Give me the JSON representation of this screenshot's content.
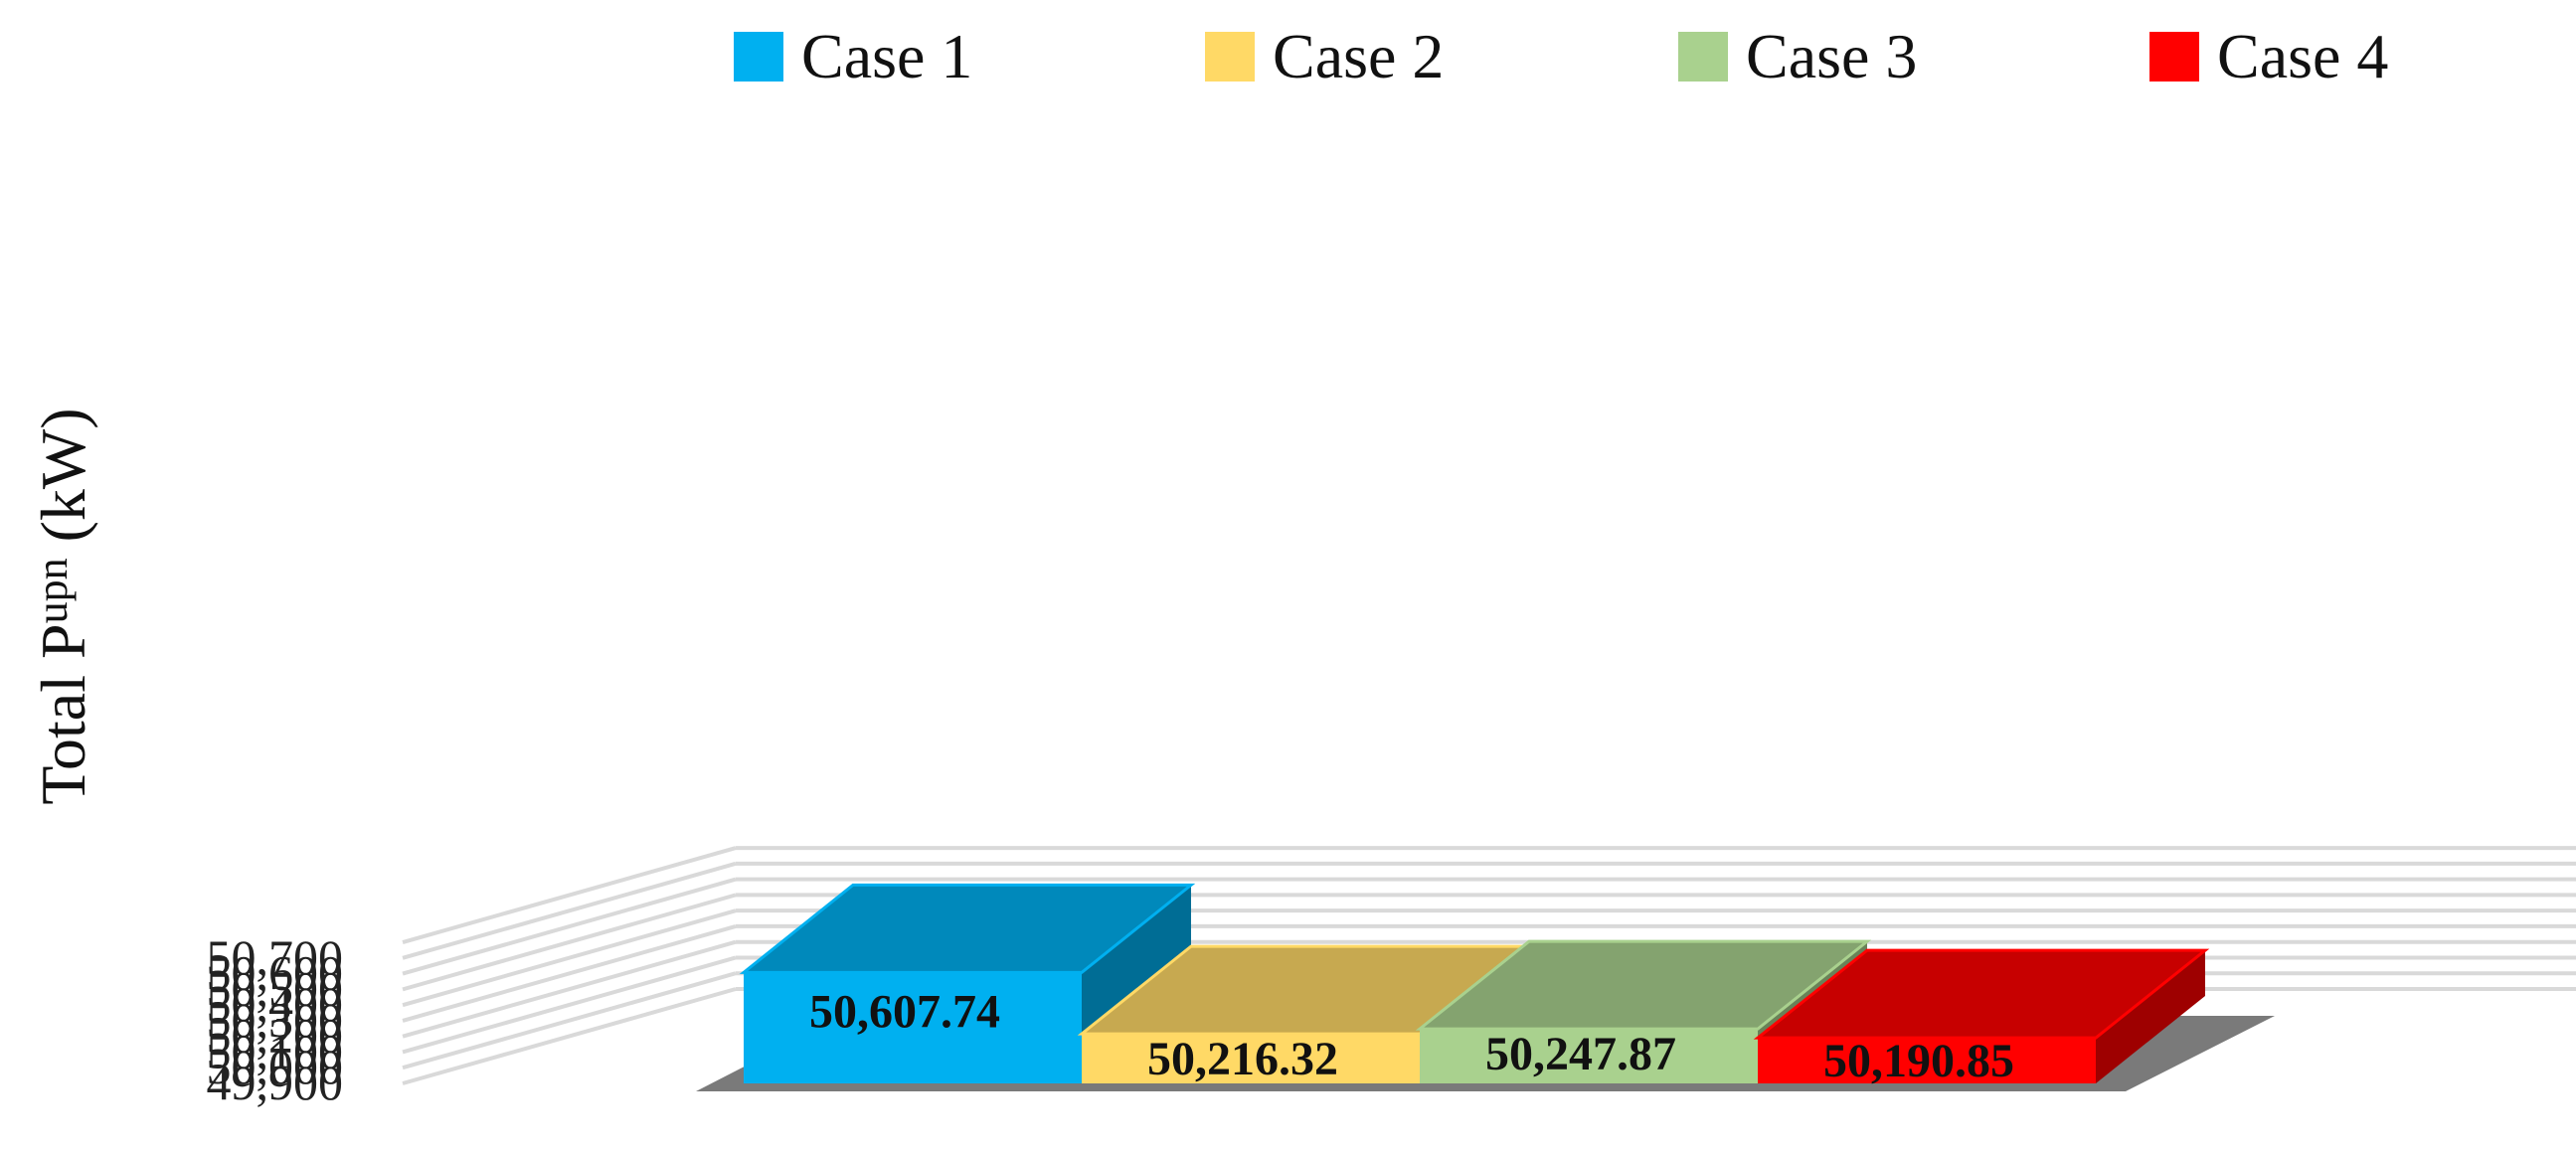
{
  "chart_data": {
    "type": "bar",
    "categories": [
      "Case 1",
      "Case 2",
      "Case 3",
      "Case 4"
    ],
    "values": [
      50607.74,
      50216.32,
      50247.87,
      50190.85
    ],
    "value_labels": [
      "50,607.74",
      "50,216.32",
      "50,247.87",
      "50,190.85"
    ],
    "title": "",
    "xlabel": "",
    "ylabel": {
      "main": "Total P",
      "sup": "upn",
      "unit": " (kW)"
    },
    "ylim": [
      49900,
      50800
    ],
    "yticks": [
      49900,
      50000,
      50100,
      50200,
      50300,
      50400,
      50500,
      50600,
      50700
    ],
    "ytick_labels": [
      "49,900",
      "50,000",
      "50,100",
      "50,200",
      "50,300",
      "50,400",
      "50,500",
      "50,600",
      "50,700"
    ],
    "grid": true,
    "legend": "top",
    "three_d": true,
    "colors": [
      "#00B0F0",
      "#FFD966",
      "#A9D18E",
      "#FF0000"
    ]
  }
}
